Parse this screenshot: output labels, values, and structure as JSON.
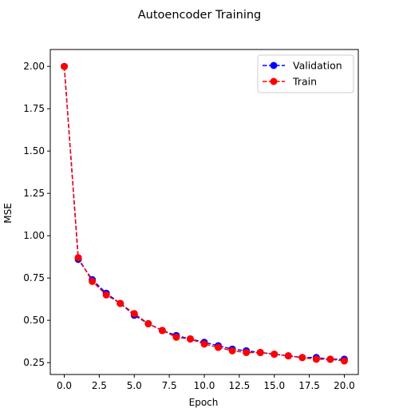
{
  "chart_data": {
    "type": "line",
    "title": "Autoencoder Training",
    "xlabel": "Epoch",
    "ylabel": "MSE",
    "xlim": [
      -1.0,
      21.0
    ],
    "ylim": [
      0.18,
      2.1
    ],
    "xticks": [
      0.0,
      2.5,
      5.0,
      7.5,
      10.0,
      12.5,
      15.0,
      17.5,
      20.0
    ],
    "xtick_labels": [
      "0.0",
      "2.5",
      "5.0",
      "7.5",
      "10.0",
      "12.5",
      "15.0",
      "17.5",
      "20.0"
    ],
    "yticks": [
      0.25,
      0.5,
      0.75,
      1.0,
      1.25,
      1.5,
      1.75,
      2.0
    ],
    "ytick_labels": [
      "0.25",
      "0.50",
      "0.75",
      "1.00",
      "1.25",
      "1.50",
      "1.75",
      "2.00"
    ],
    "grid": false,
    "legend_position": "top-right",
    "x": [
      0,
      1,
      2,
      3,
      4,
      5,
      6,
      7,
      8,
      9,
      10,
      11,
      12,
      13,
      14,
      15,
      16,
      17,
      18,
      19,
      20
    ],
    "series": [
      {
        "name": "Validation",
        "color": "#0000ff",
        "marker": "circle",
        "linestyle": "dashed",
        "values": [
          2.0,
          0.86,
          0.74,
          0.66,
          0.6,
          0.53,
          0.48,
          0.44,
          0.41,
          0.39,
          0.37,
          0.35,
          0.33,
          0.32,
          0.31,
          0.3,
          0.29,
          0.28,
          0.28,
          0.27,
          0.27
        ]
      },
      {
        "name": "Train",
        "color": "#ff0000",
        "marker": "circle",
        "linestyle": "dashed",
        "values": [
          2.0,
          0.87,
          0.73,
          0.65,
          0.6,
          0.54,
          0.48,
          0.44,
          0.4,
          0.39,
          0.36,
          0.34,
          0.32,
          0.31,
          0.31,
          0.3,
          0.29,
          0.28,
          0.27,
          0.27,
          0.26
        ]
      }
    ]
  }
}
